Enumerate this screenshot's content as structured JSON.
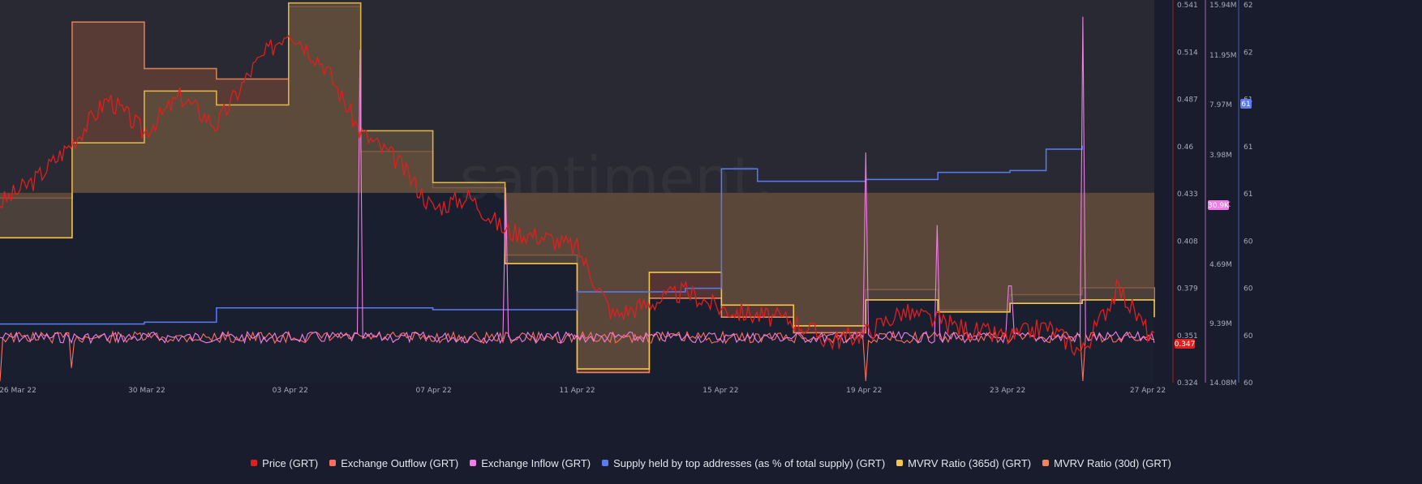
{
  "colors": {
    "background": "#181c2c",
    "price": "#e01f1f",
    "outflow": "#ff6f5e",
    "inflow": "#f07ee6",
    "supply": "#5b7bf5",
    "mvrv365": "#f6c64a",
    "mvrv30": "#f0855a",
    "mvrv365_fill": "#5c4e3e",
    "mvrv30_fill": "#6a3e34"
  },
  "watermark": "santiment.",
  "legend": [
    {
      "label": "Price (GRT)",
      "color": "#e01f1f"
    },
    {
      "label": "Exchange Outflow (GRT)",
      "color": "#ff6f5e"
    },
    {
      "label": "Exchange Inflow (GRT)",
      "color": "#f07ee6"
    },
    {
      "label": "Supply held by top addresses (as % of total supply) (GRT)",
      "color": "#5b7bf5"
    },
    {
      "label": "MVRV Ratio (365d) (GRT)",
      "color": "#f6c64a"
    },
    {
      "label": "MVRV Ratio (30d) (GRT)",
      "color": "#f0855a"
    }
  ],
  "chart_data": {
    "type": "line",
    "x_ticks": [
      "26 Mar 22",
      "30 Mar 22",
      "03 Apr 22",
      "07 Apr 22",
      "11 Apr 22",
      "15 Apr 22",
      "19 Apr 22",
      "23 Apr 22",
      "27 Apr 22"
    ],
    "x_range": [
      "2022-03-26",
      "2022-04-27"
    ],
    "axes": {
      "price": {
        "ticks": [
          "0.541",
          "0.514",
          "0.487",
          "0.46",
          "0.433",
          "0.408",
          "0.379",
          "0.351",
          "0.324"
        ],
        "range": [
          0.324,
          0.541
        ],
        "current_label": "0.347"
      },
      "volume": {
        "ticks": [
          "15.94M",
          "11.95M",
          "7.97M",
          "3.98M",
          "30.9K",
          "4.69M",
          "9.39M",
          "14.08M"
        ],
        "current_label": "30.9K"
      },
      "supply": {
        "ticks": [
          "62",
          "62",
          "61",
          "61",
          "61",
          "60",
          "60",
          "60",
          "60"
        ],
        "current_label": "61"
      }
    },
    "series": [
      {
        "name": "Price (GRT)",
        "axis": "price",
        "points": [
          [
            "2022-03-26",
            0.427
          ],
          [
            "2022-03-27",
            0.441
          ],
          [
            "2022-03-28",
            0.462
          ],
          [
            "2022-03-29",
            0.488
          ],
          [
            "2022-03-30",
            0.468
          ],
          [
            "2022-03-31",
            0.489
          ],
          [
            "2022-04-01",
            0.472
          ],
          [
            "2022-04-02",
            0.505
          ],
          [
            "2022-04-03",
            0.528
          ],
          [
            "2022-04-04",
            0.507
          ],
          [
            "2022-04-05",
            0.468
          ],
          [
            "2022-04-06",
            0.452
          ],
          [
            "2022-04-07",
            0.424
          ],
          [
            "2022-04-08",
            0.431
          ],
          [
            "2022-04-09",
            0.411
          ],
          [
            "2022-04-10",
            0.408
          ],
          [
            "2022-04-11",
            0.401
          ],
          [
            "2022-04-12",
            0.362
          ],
          [
            "2022-04-13",
            0.369
          ],
          [
            "2022-04-14",
            0.376
          ],
          [
            "2022-04-15",
            0.366
          ],
          [
            "2022-04-16",
            0.362
          ],
          [
            "2022-04-17",
            0.359
          ],
          [
            "2022-04-18",
            0.347
          ],
          [
            "2022-04-19",
            0.352
          ],
          [
            "2022-04-20",
            0.364
          ],
          [
            "2022-04-21",
            0.359
          ],
          [
            "2022-04-22",
            0.353
          ],
          [
            "2022-04-23",
            0.349
          ],
          [
            "2022-04-24",
            0.356
          ],
          [
            "2022-04-25",
            0.341
          ],
          [
            "2022-04-26",
            0.378
          ],
          [
            "2022-04-27",
            0.347
          ]
        ]
      },
      {
        "name": "Exchange Outflow (GRT)",
        "axis": "volume",
        "points": [
          [
            "2022-03-26",
            4.1
          ],
          [
            "2022-03-28",
            3.2
          ],
          [
            "2022-03-30",
            1.9
          ],
          [
            "2022-04-01",
            1.5
          ],
          [
            "2022-04-03",
            1.2
          ],
          [
            "2022-04-05",
            1.6
          ],
          [
            "2022-04-07",
            2.1
          ],
          [
            "2022-04-09",
            1.3
          ],
          [
            "2022-04-11",
            1.7
          ],
          [
            "2022-04-13",
            1.4
          ],
          [
            "2022-04-15",
            1.2
          ],
          [
            "2022-04-17",
            1.5
          ],
          [
            "2022-04-19",
            8.9
          ],
          [
            "2022-04-21",
            1.4
          ],
          [
            "2022-04-23",
            1.3
          ],
          [
            "2022-04-25",
            7.8
          ],
          [
            "2022-04-27",
            1.1
          ]
        ]
      },
      {
        "name": "Exchange Inflow (GRT)",
        "axis": "volume",
        "points": [
          [
            "2022-03-26",
            0.6
          ],
          [
            "2022-03-28",
            1.1
          ],
          [
            "2022-03-30",
            0.9
          ],
          [
            "2022-04-01",
            2.1
          ],
          [
            "2022-04-03",
            1.4
          ],
          [
            "2022-04-05",
            14.2
          ],
          [
            "2022-04-07",
            0.8
          ],
          [
            "2022-04-09",
            8.3
          ],
          [
            "2022-04-11",
            1.2
          ],
          [
            "2022-04-13",
            0.7
          ],
          [
            "2022-04-15",
            0.9
          ],
          [
            "2022-04-17",
            0.6
          ],
          [
            "2022-04-19",
            9.8
          ],
          [
            "2022-04-21",
            6.7
          ],
          [
            "2022-04-23",
            4.1
          ],
          [
            "2022-04-25",
            15.6
          ],
          [
            "2022-04-27",
            0.5
          ]
        ]
      },
      {
        "name": "Supply held by top addresses (as % of total supply) (GRT)",
        "axis": "supply",
        "points": [
          [
            "2022-03-26",
            60.24
          ],
          [
            "2022-03-30",
            60.25
          ],
          [
            "2022-04-01",
            60.33
          ],
          [
            "2022-04-07",
            60.32
          ],
          [
            "2022-04-11",
            60.42
          ],
          [
            "2022-04-14",
            60.44
          ],
          [
            "2022-04-15",
            61.11
          ],
          [
            "2022-04-16",
            61.04
          ],
          [
            "2022-04-19",
            61.05
          ],
          [
            "2022-04-21",
            61.09
          ],
          [
            "2022-04-23",
            61.1
          ],
          [
            "2022-04-24",
            61.22
          ],
          [
            "2022-04-25",
            61.24
          ]
        ]
      },
      {
        "name": "MVRV Ratio (365d) (GRT)",
        "axis": "price",
        "points": [
          [
            "2022-03-26",
            0.407
          ],
          [
            "2022-03-28",
            0.462
          ],
          [
            "2022-03-30",
            0.492
          ],
          [
            "2022-04-01",
            0.484
          ],
          [
            "2022-04-03",
            0.543
          ],
          [
            "2022-04-05",
            0.469
          ],
          [
            "2022-04-07",
            0.439
          ],
          [
            "2022-04-09",
            0.392
          ],
          [
            "2022-04-11",
            0.331
          ],
          [
            "2022-04-13",
            0.387
          ],
          [
            "2022-04-15",
            0.368
          ],
          [
            "2022-04-17",
            0.356
          ],
          [
            "2022-04-19",
            0.371
          ],
          [
            "2022-04-21",
            0.364
          ],
          [
            "2022-04-23",
            0.369
          ],
          [
            "2022-04-25",
            0.371
          ],
          [
            "2022-04-27",
            0.361
          ]
        ]
      },
      {
        "name": "MVRV Ratio (30d) (GRT)",
        "axis": "price",
        "points": [
          [
            "2022-03-26",
            0.43
          ],
          [
            "2022-03-28",
            0.532
          ],
          [
            "2022-03-30",
            0.505
          ],
          [
            "2022-04-01",
            0.499
          ],
          [
            "2022-04-03",
            0.541
          ],
          [
            "2022-04-05",
            0.457
          ],
          [
            "2022-04-07",
            0.436
          ],
          [
            "2022-04-09",
            0.397
          ],
          [
            "2022-04-11",
            0.329
          ],
          [
            "2022-04-13",
            0.372
          ],
          [
            "2022-04-15",
            0.361
          ],
          [
            "2022-04-17",
            0.352
          ],
          [
            "2022-04-19",
            0.377
          ],
          [
            "2022-04-21",
            0.365
          ],
          [
            "2022-04-23",
            0.374
          ],
          [
            "2022-04-25",
            0.378
          ],
          [
            "2022-04-27",
            0.37
          ]
        ]
      }
    ],
    "legend_position": "bottom",
    "grid": false
  }
}
